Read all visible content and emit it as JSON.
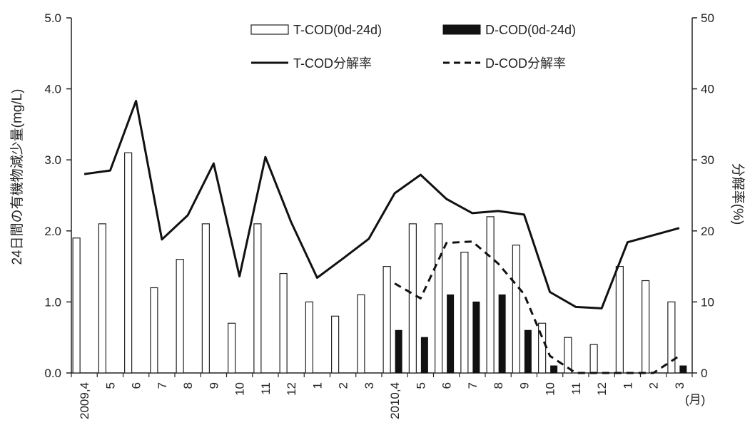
{
  "chart_data": {
    "type": "bar",
    "ylabel": "24日間の有機物減少量(mg/L)",
    "y2label": "分解率(%)",
    "xunit": "(月)",
    "ylim": [
      0,
      5
    ],
    "y2lim": [
      0,
      50
    ],
    "yticks": [
      "0.0",
      "1.0",
      "2.0",
      "3.0",
      "4.0",
      "5.0"
    ],
    "y2ticks": [
      "0",
      "10",
      "20",
      "30",
      "40",
      "50"
    ],
    "grid": false,
    "legend_position": "top",
    "categories": [
      "2009,4",
      "5",
      "6",
      "7",
      "8",
      "9",
      "10",
      "11",
      "12",
      "1",
      "2",
      "3",
      "2010,4",
      "5",
      "6",
      "7",
      "8",
      "9",
      "10",
      "11",
      "12",
      "1",
      "2",
      "3"
    ],
    "series": [
      {
        "name": "T-COD(0d-24d)",
        "kind": "bar",
        "axis": "left",
        "color": "#ffffff",
        "values": [
          1.9,
          2.1,
          3.1,
          1.2,
          1.6,
          2.1,
          0.7,
          2.1,
          1.4,
          1.0,
          0.8,
          1.1,
          1.5,
          2.1,
          2.1,
          1.7,
          2.2,
          1.8,
          0.7,
          0.5,
          0.4,
          1.5,
          1.3,
          1.0
        ]
      },
      {
        "name": "D-COD(0d-24d)",
        "kind": "bar",
        "axis": "left",
        "color": "#111111",
        "values": [
          null,
          null,
          null,
          null,
          null,
          null,
          null,
          null,
          null,
          null,
          null,
          null,
          0.6,
          0.5,
          1.1,
          1.0,
          1.1,
          0.6,
          0.1,
          null,
          null,
          null,
          null,
          0.1
        ]
      },
      {
        "name": "T-COD分解率",
        "kind": "line",
        "axis": "right",
        "style": "solid",
        "values": [
          28,
          28.5,
          38.3,
          18.8,
          22.2,
          29.5,
          13.6,
          30.4,
          21.2,
          13.4,
          16.1,
          18.9,
          25.3,
          27.9,
          24.5,
          22.5,
          22.8,
          22.3,
          11.4,
          9.3,
          9.1,
          18.4,
          19.4,
          20.4
        ]
      },
      {
        "name": "D-COD分解率",
        "kind": "line",
        "axis": "right",
        "style": "dashed",
        "values": [
          null,
          null,
          null,
          null,
          null,
          null,
          null,
          null,
          null,
          null,
          null,
          null,
          12.6,
          10.5,
          18.3,
          18.5,
          15.4,
          11.1,
          2.4,
          0,
          0,
          0,
          0,
          2.4
        ]
      }
    ]
  }
}
